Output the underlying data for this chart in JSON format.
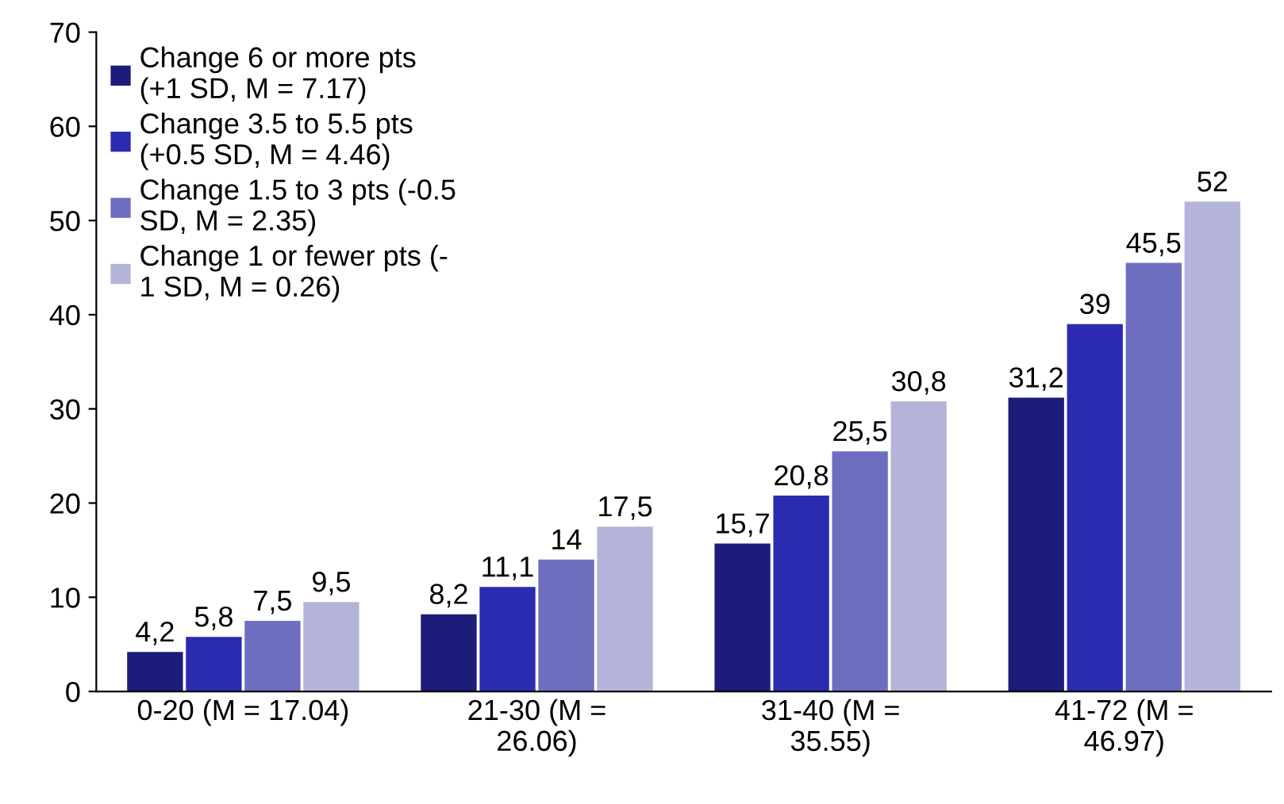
{
  "chart_data": {
    "type": "bar",
    "categories": [
      "0-20 (M = 17.04)",
      "21-30 (M =\n26.06)",
      "31-40 (M =\n35.55)",
      "41-72 (M =\n46.97)"
    ],
    "series": [
      {
        "name": "Change 6 or more pts\n(+1 SD, M = 7.17)",
        "color": "#1c1c7a",
        "values": [
          4.2,
          8.2,
          15.7,
          31.2
        ],
        "value_labels": [
          "4,2",
          "8,2",
          "15,7",
          "31,2"
        ]
      },
      {
        "name": "Change 3.5 to 5.5 pts\n(+0.5 SD, M = 4.46)",
        "color": "#2b2bb0",
        "values": [
          5.8,
          11.1,
          20.8,
          39
        ],
        "value_labels": [
          "5,8",
          "11,1",
          "20,8",
          "39"
        ]
      },
      {
        "name": "Change 1.5 to 3 pts (-0.5\nSD, M = 2.35)",
        "color": "#6e6ec0",
        "values": [
          7.5,
          14,
          25.5,
          45.5
        ],
        "value_labels": [
          "7,5",
          "14",
          "25,5",
          "45,5"
        ]
      },
      {
        "name": "Change 1 or fewer pts (-\n1 SD, M = 0.26)",
        "color": "#b4b4da",
        "values": [
          9.5,
          17.5,
          30.8,
          52
        ],
        "value_labels": [
          "9,5",
          "17,5",
          "30,8",
          "52"
        ]
      }
    ],
    "ylim": [
      0,
      70
    ],
    "yticks": [
      0,
      10,
      20,
      30,
      40,
      50,
      60,
      70
    ],
    "grid": false,
    "legend": "top left"
  }
}
